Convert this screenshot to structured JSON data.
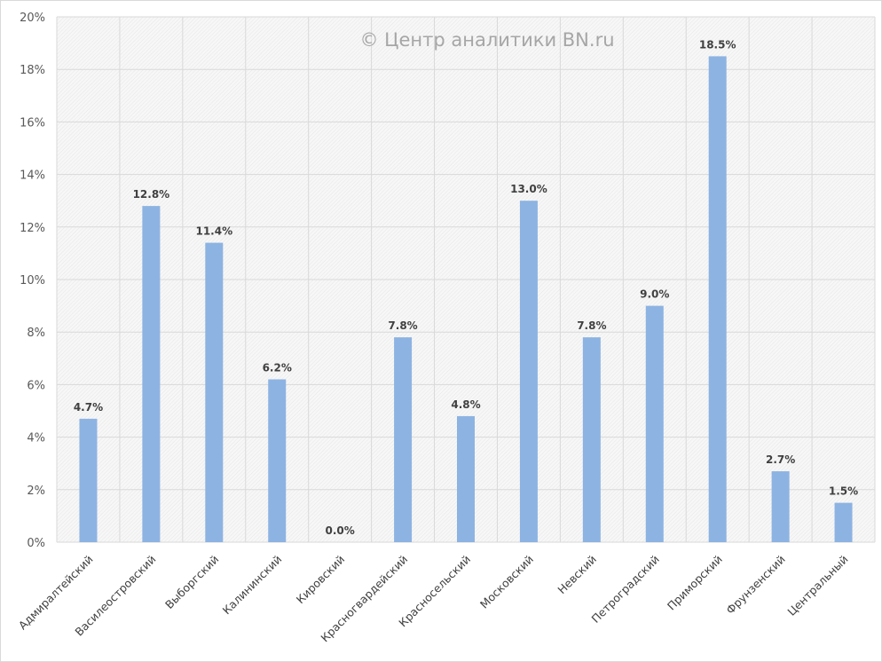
{
  "chart_data": {
    "type": "bar",
    "title": "",
    "watermark": "© Центр аналитики BN.ru",
    "xlabel": "",
    "ylabel": "",
    "ylim": [
      0,
      20
    ],
    "yticks": [
      0,
      2,
      4,
      6,
      8,
      10,
      12,
      14,
      16,
      18,
      20
    ],
    "ytick_labels": [
      "0%",
      "2%",
      "4%",
      "6%",
      "8%",
      "10%",
      "12%",
      "14%",
      "16%",
      "18%",
      "20%"
    ],
    "grid": true,
    "categories": [
      "Адмиралтейский",
      "Василеостровский",
      "Выборгский",
      "Калининский",
      "Кировский",
      "Красногвардейский",
      "Красносельский",
      "Московский",
      "Невский",
      "Петроградский",
      "Приморский",
      "Фрунзенский",
      "Центральный"
    ],
    "values": [
      4.7,
      12.8,
      11.4,
      6.2,
      0.0,
      7.8,
      4.8,
      13.0,
      7.8,
      9.0,
      18.5,
      2.7,
      1.5
    ],
    "data_labels": [
      "4.7%",
      "12.8%",
      "11.4%",
      "6.2%",
      "0.0%",
      "7.8%",
      "4.8%",
      "13.0%",
      "7.8%",
      "9.0%",
      "18.5%",
      "2.7%",
      "1.5%"
    ],
    "colors": {
      "bar": "#8DB3E2",
      "grid": "#d9d9d9"
    }
  }
}
